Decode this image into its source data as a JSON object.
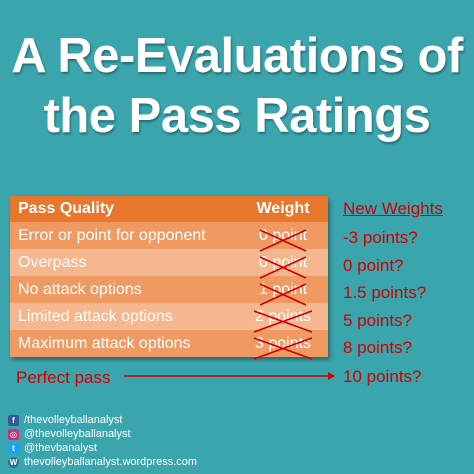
{
  "title": {
    "line1": "A Re-Evaluations of",
    "line2": "the Pass Ratings"
  },
  "table": {
    "header": {
      "quality": "Pass Quality",
      "weight": "Weight"
    },
    "rows": [
      {
        "quality": "Error or point for opponent",
        "weight": "0 point"
      },
      {
        "quality": "Overpass",
        "weight": "0 point"
      },
      {
        "quality": "No attack options",
        "weight": "1 point"
      },
      {
        "quality": "Limited attack options",
        "weight": "2 points"
      },
      {
        "quality": "Maximum attack options",
        "weight": "3 points"
      }
    ]
  },
  "new_weights": {
    "header": "New Weights",
    "values": [
      "-3 points?",
      "0 point?",
      "1.5 points?",
      "5 points?",
      "8 points?",
      "10 points?"
    ]
  },
  "perfect_pass": "Perfect pass",
  "social": {
    "facebook": "/thevolleyballanalyst",
    "instagram": "@thevolleyballanalyst",
    "twitter": "@thevbanalyst",
    "wordpress": "thevolleyballanalyst.wordpress.com"
  },
  "colors": {
    "background": "#3aa5ad",
    "table_header": "#e8762c",
    "row_dark": "#f09a63",
    "row_light": "#f5b78f",
    "accent_red": "#d10000"
  }
}
